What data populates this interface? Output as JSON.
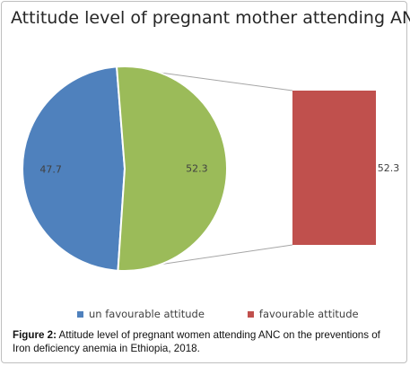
{
  "chart_data": {
    "type": "pie",
    "title": "Attitude level of pregnant mother attending ANC",
    "slices": [
      {
        "label": "un favourable attitude",
        "value": 47.7,
        "color": "#4f81bd",
        "data_label": "47.7"
      },
      {
        "label": "favourable attitude",
        "value": 52.3,
        "color": "#9bbb59",
        "data_label": "52.3"
      }
    ],
    "bar_of_pie": {
      "label": "favourable attitude",
      "value": 52.3,
      "color": "#c0504d",
      "data_label": "52.3"
    },
    "legend": [
      {
        "label": "un favourable attitude",
        "color": "#4f81bd"
      },
      {
        "label": "favourable attitude",
        "color": "#c0504d"
      }
    ],
    "legend_position": "bottom"
  },
  "caption": {
    "prefix": "Figure 2:",
    "text": " Attitude level of pregnant women attending ANC on the preventions of Iron deficiency anemia in Ethiopia, 2018."
  }
}
